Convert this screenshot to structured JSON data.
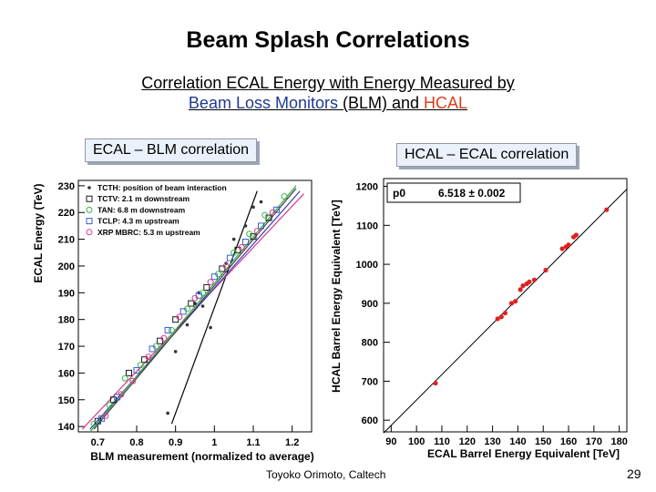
{
  "slide": {
    "title": "Beam Splash Correlations",
    "subtitle_line1": "Correlation ECAL Energy with Energy Measured by",
    "subtitle_line2_part1": "Beam Loss Monitors",
    "subtitle_line2_part2": " (BLM) and ",
    "subtitle_line2_part3": "HCAL",
    "footer": "Toyoko Orimoto, Caltech",
    "page_number": "29"
  },
  "colors": {
    "accent_blue": "#1f3a93",
    "accent_red": "#e03c1f"
  },
  "chart_data": [
    {
      "type": "scatter",
      "panel_label": "ECAL – BLM correlation",
      "xlabel": "BLM measurement (normalized to average)",
      "ylabel": "ECAL Energy (TeV)",
      "xlim": [
        0.65,
        1.25
      ],
      "ylim": [
        138,
        232
      ],
      "xticks": [
        "0.7",
        "0.8",
        "0.9",
        "1",
        "1.1",
        "1.2"
      ],
      "yticks": [
        "140",
        "150",
        "160",
        "170",
        "180",
        "190",
        "200",
        "210",
        "220",
        "230"
      ],
      "legend_position": "top-left",
      "series": [
        {
          "name": "TCTH: position of beam interaction",
          "color": "#333333",
          "marker": "dot",
          "points": [
            [
              0.88,
              145
            ],
            [
              0.9,
              168
            ],
            [
              0.93,
              178
            ],
            [
              0.95,
              186
            ],
            [
              0.96,
              190
            ],
            [
              0.97,
              185
            ],
            [
              0.99,
              177
            ],
            [
              1.03,
              201
            ],
            [
              1.05,
              210
            ],
            [
              1.08,
              215
            ],
            [
              1.1,
              222
            ],
            [
              1.12,
              224
            ]
          ]
        },
        {
          "name": "TCTV: 2.1 m downstream",
          "color": "#1a1a1a",
          "marker": "open-square",
          "points": [
            [
              0.7,
              142
            ],
            [
              0.74,
              150
            ],
            [
              0.78,
              160
            ],
            [
              0.82,
              165
            ],
            [
              0.86,
              172
            ],
            [
              0.9,
              180
            ],
            [
              0.94,
              186
            ],
            [
              0.98,
              192
            ],
            [
              1.02,
              199
            ],
            [
              1.06,
              206
            ],
            [
              1.1,
              211
            ],
            [
              1.14,
              218
            ]
          ]
        },
        {
          "name": "TAN: 6.8 m downstream",
          "color": "#39b54a",
          "marker": "open-circle",
          "points": [
            [
              0.69,
              141
            ],
            [
              0.73,
              148
            ],
            [
              0.77,
              158
            ],
            [
              0.81,
              163
            ],
            [
              0.85,
              170
            ],
            [
              0.89,
              176
            ],
            [
              0.93,
              184
            ],
            [
              0.97,
              190
            ],
            [
              1.01,
              197
            ],
            [
              1.05,
              205
            ],
            [
              1.09,
              212
            ],
            [
              1.13,
              219
            ],
            [
              1.18,
              226
            ]
          ]
        },
        {
          "name": "TCLP: 4.3 m upstream",
          "color": "#3a5fcd",
          "marker": "open-square",
          "points": [
            [
              0.71,
              143
            ],
            [
              0.75,
              151
            ],
            [
              0.8,
              161
            ],
            [
              0.84,
              169
            ],
            [
              0.88,
              176
            ],
            [
              0.92,
              183
            ],
            [
              0.96,
              189
            ],
            [
              1.0,
              196
            ],
            [
              1.04,
              203
            ],
            [
              1.08,
              209
            ],
            [
              1.12,
              215
            ],
            [
              1.16,
              221
            ]
          ]
        },
        {
          "name": "XRP MBRC: 5.3 m upstream",
          "color": "#d93a8a",
          "marker": "open-circle",
          "points": [
            [
              0.72,
              144
            ],
            [
              0.76,
              152
            ],
            [
              0.79,
              157
            ],
            [
              0.83,
              166
            ],
            [
              0.87,
              173
            ],
            [
              0.91,
              181
            ],
            [
              0.95,
              188
            ],
            [
              0.99,
              194
            ],
            [
              1.03,
              200
            ],
            [
              1.07,
              207
            ],
            [
              1.11,
              213
            ],
            [
              1.15,
              220
            ]
          ]
        }
      ],
      "fit_lines": [
        {
          "color": "#000000",
          "x": [
            0.89,
            1.11
          ],
          "y": [
            141,
            228
          ]
        },
        {
          "color": "#d63a8f",
          "x": [
            0.66,
            1.23
          ],
          "y": [
            139,
            227
          ]
        },
        {
          "color": "#2f3fb0",
          "x": [
            0.68,
            1.22
          ],
          "y": [
            139,
            228
          ]
        },
        {
          "color": "#3aa84a",
          "x": [
            0.68,
            1.21
          ],
          "y": [
            138,
            230
          ]
        },
        {
          "color": "#444444",
          "x": [
            0.69,
            1.21
          ],
          "y": [
            139,
            229
          ]
        }
      ]
    },
    {
      "type": "scatter",
      "panel_label": "HCAL – ECAL correlation",
      "xlabel": "ECAL Barrel Energy Equivalent [TeV]",
      "ylabel": "HCAL Barrel Energy Equivalent [TeV]",
      "xlim": [
        87,
        183
      ],
      "ylim": [
        570,
        1220
      ],
      "xticks": [
        "90",
        "100",
        "110",
        "120",
        "130",
        "140",
        "150",
        "160",
        "170",
        "180"
      ],
      "yticks": [
        "600",
        "700",
        "800",
        "900",
        "1000",
        "1100",
        "1200"
      ],
      "stats_box": {
        "label": "p0",
        "value": "6.518 ± 0.002"
      },
      "fit": {
        "slope": 6.518,
        "color": "#000000"
      },
      "points": [
        [
          107.5,
          695
        ],
        [
          132,
          860
        ],
        [
          133.5,
          865
        ],
        [
          135,
          875
        ],
        [
          137.5,
          900
        ],
        [
          139,
          905
        ],
        [
          141,
          935
        ],
        [
          142,
          945
        ],
        [
          143.5,
          950
        ],
        [
          144.5,
          955
        ],
        [
          146.5,
          960
        ],
        [
          151,
          985
        ],
        [
          157.5,
          1040
        ],
        [
          159,
          1045
        ],
        [
          160,
          1050
        ],
        [
          162,
          1070
        ],
        [
          163,
          1075
        ],
        [
          175,
          1140
        ]
      ],
      "point_color": "#dd2222"
    }
  ]
}
